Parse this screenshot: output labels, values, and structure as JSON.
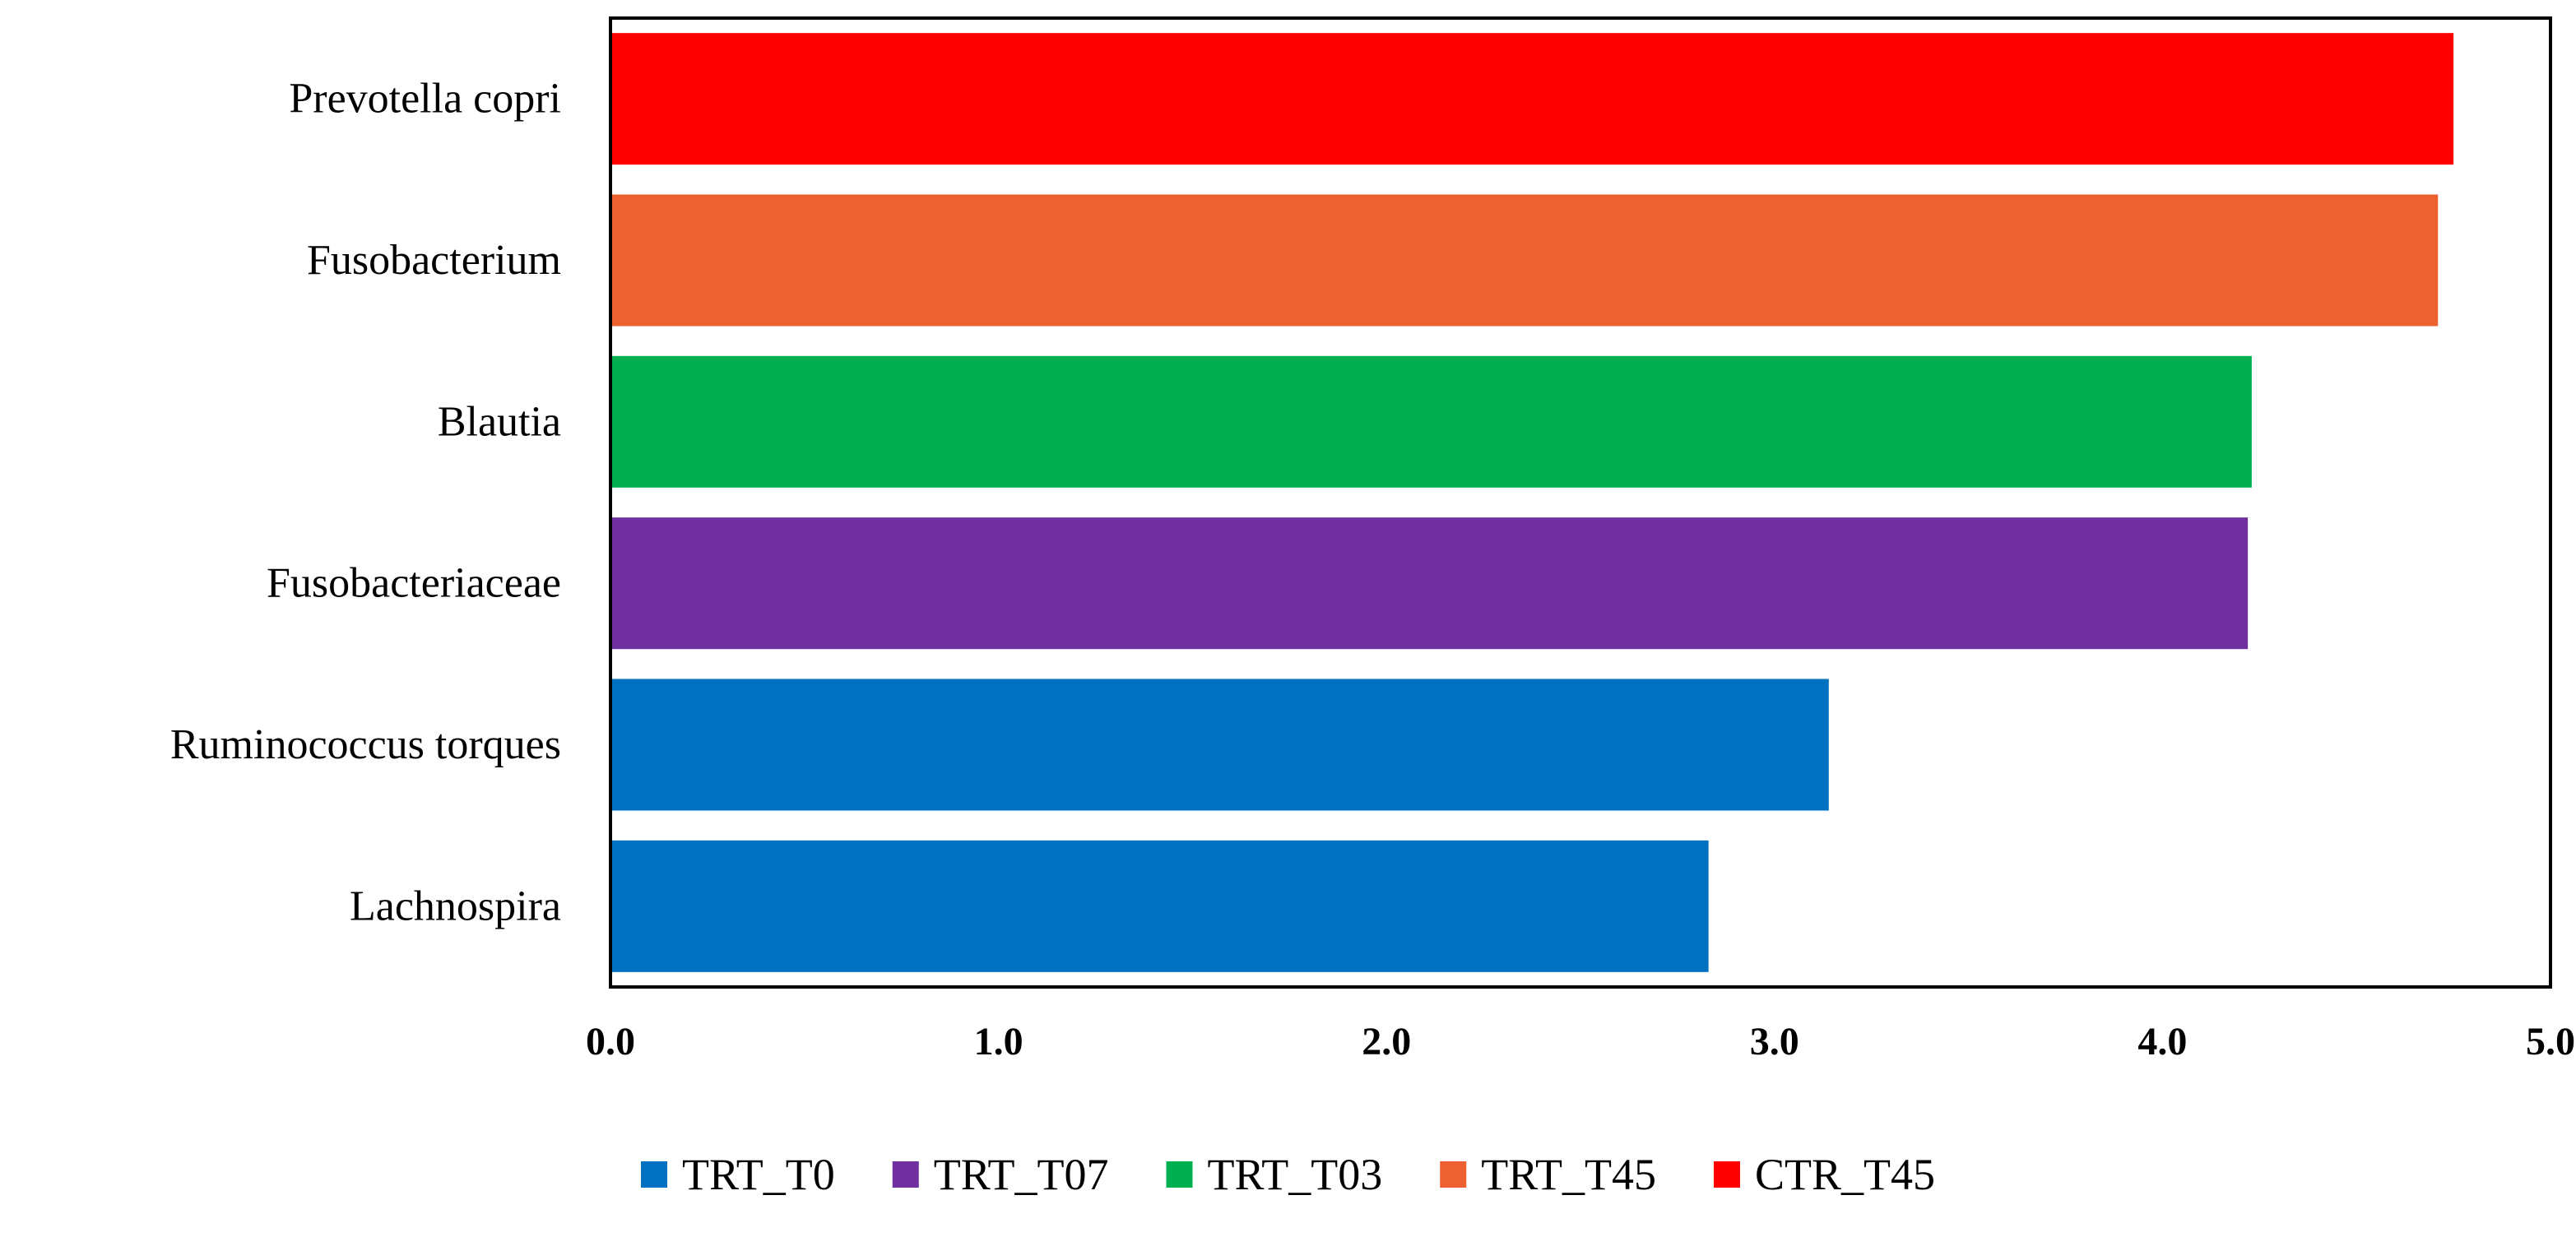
{
  "chart_data": {
    "type": "bar",
    "orientation": "horizontal",
    "title": "",
    "xlabel": "",
    "ylabel": "",
    "xlim": [
      0,
      5
    ],
    "grid": false,
    "categories": [
      "Prevotella copri",
      "Fusobacterium",
      "Blautia",
      "Fusobacteriaceae",
      "Ruminococcus torques",
      "Lachnospira"
    ],
    "values": [
      4.75,
      4.71,
      4.23,
      4.22,
      3.14,
      2.83
    ],
    "groups": [
      "CTR_T45",
      "TRT_T45",
      "TRT_T03",
      "TRT_T07",
      "TRT_T0",
      "TRT_T0"
    ],
    "x_ticks": [
      "0.0",
      "1.0",
      "2.0",
      "3.0",
      "4.0",
      "5.0"
    ],
    "legend": {
      "placement": "bottom",
      "entries": [
        {
          "name": "TRT_T0",
          "color": "#0070C0"
        },
        {
          "name": "TRT_T07",
          "color": "#7030A0"
        },
        {
          "name": "TRT_T03",
          "color": "#00B050"
        },
        {
          "name": "TRT_T45",
          "color": "#ED6030"
        },
        {
          "name": "CTR_T45",
          "color": "#FF0000"
        }
      ]
    }
  }
}
